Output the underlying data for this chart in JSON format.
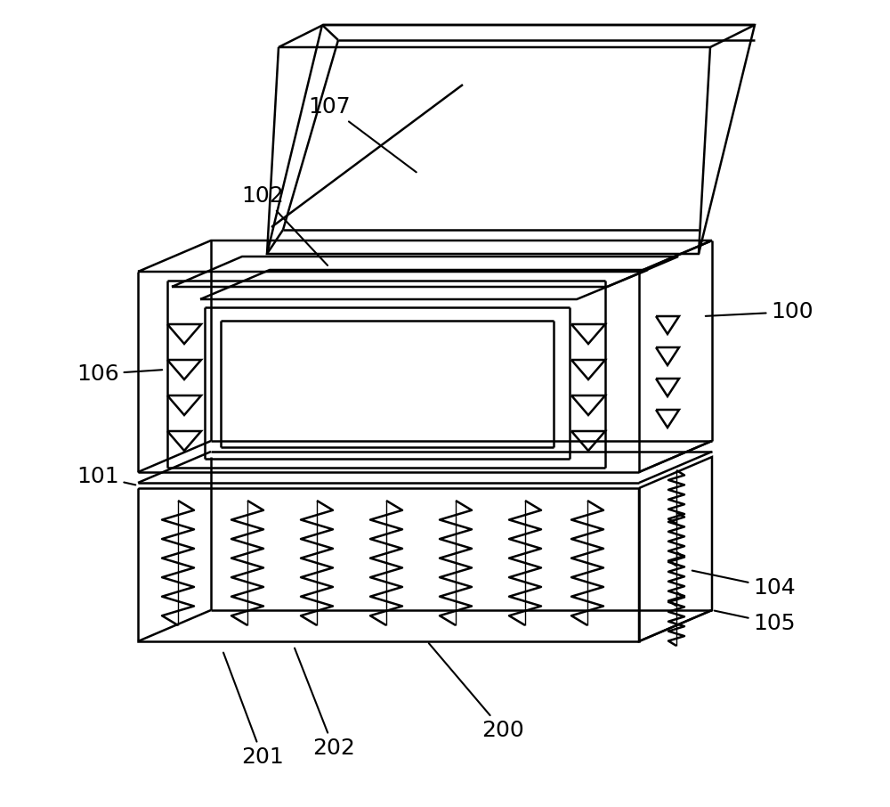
{
  "bg_color": "#ffffff",
  "line_color": "#000000",
  "lw": 1.8,
  "lw_thin": 1.0
}
